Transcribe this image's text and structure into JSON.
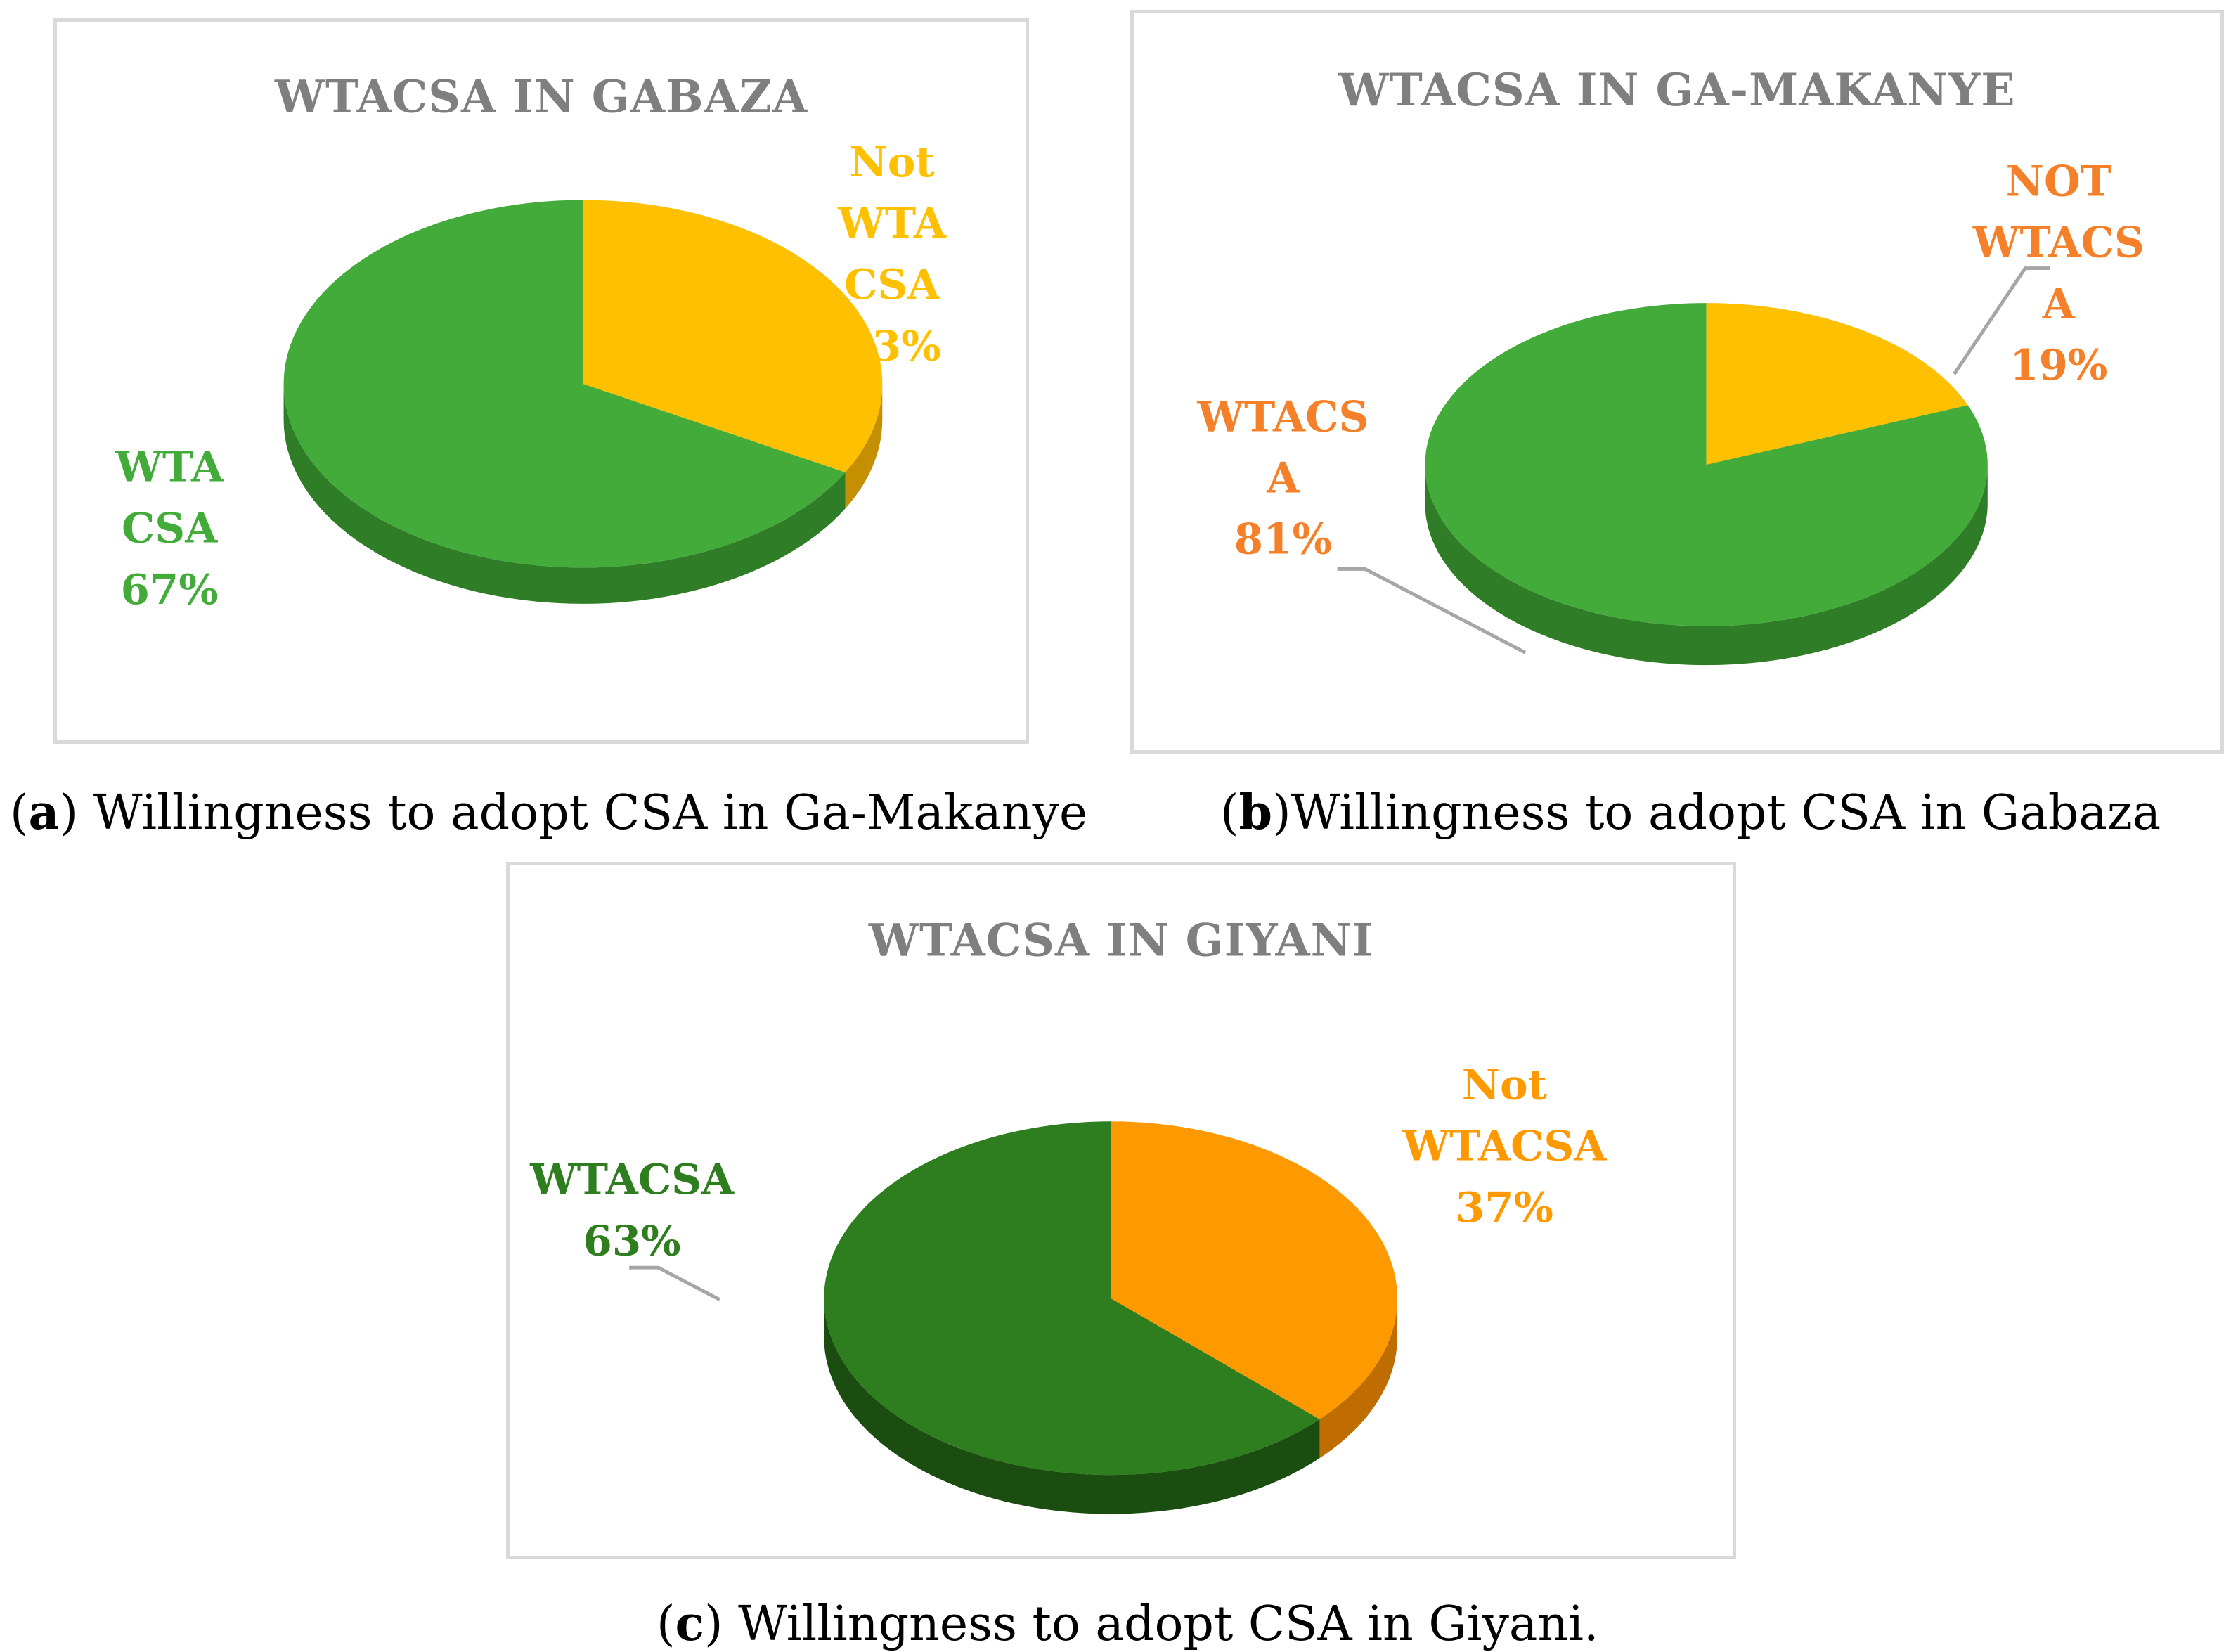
{
  "colors": {
    "wta_green": "#43ab3a",
    "wta_green_dark": "#2f7d27",
    "not_gold": "#ffc000",
    "not_gold_dark": "#c48f00",
    "gm_label_orange": "#f5802a",
    "giyani_green": "#2e7d1e",
    "giyani_green_dark": "#1b4d11",
    "giyani_orange": "#ff9900",
    "giyani_orange_dark": "#c06d00",
    "title_gray": "#7f7f7f",
    "leader_gray": "#a6a6a6"
  },
  "chart_data": [
    {
      "type": "pie",
      "title": "WTACSA IN GABAZA",
      "categories": [
        "WTA CSA",
        "Not WTA CSA"
      ],
      "values": [
        67,
        33
      ],
      "labels": [
        [
          "WTA",
          "CSA",
          "67%"
        ],
        [
          "Not",
          "WTA",
          "CSA",
          "33%"
        ]
      ]
    },
    {
      "type": "pie",
      "title": "WTACSA IN GA-MAKANYE",
      "categories": [
        "WTACSA",
        "NOT WTACSA"
      ],
      "values": [
        81,
        19
      ],
      "labels": [
        [
          "WTACS",
          "A",
          "81%"
        ],
        [
          "NOT",
          "WTACS",
          "A",
          "19%"
        ]
      ]
    },
    {
      "type": "pie",
      "title": "WTACSA IN GIYANI",
      "categories": [
        "WTACSA",
        "Not WTACSA"
      ],
      "values": [
        63,
        37
      ],
      "labels": [
        [
          "WTACSA",
          "63%"
        ],
        [
          "Not",
          "WTACSA",
          "37%"
        ]
      ]
    }
  ],
  "captions": {
    "a_letter": "a",
    "a_text": ") Willingness to adopt CSA in Ga-Makanye",
    "b_letter": "b",
    "b_text": ")Willingness to adopt CSA in Gabaza",
    "c_letter": "c",
    "c_text": ") Willingness to adopt CSA in Giyani."
  }
}
